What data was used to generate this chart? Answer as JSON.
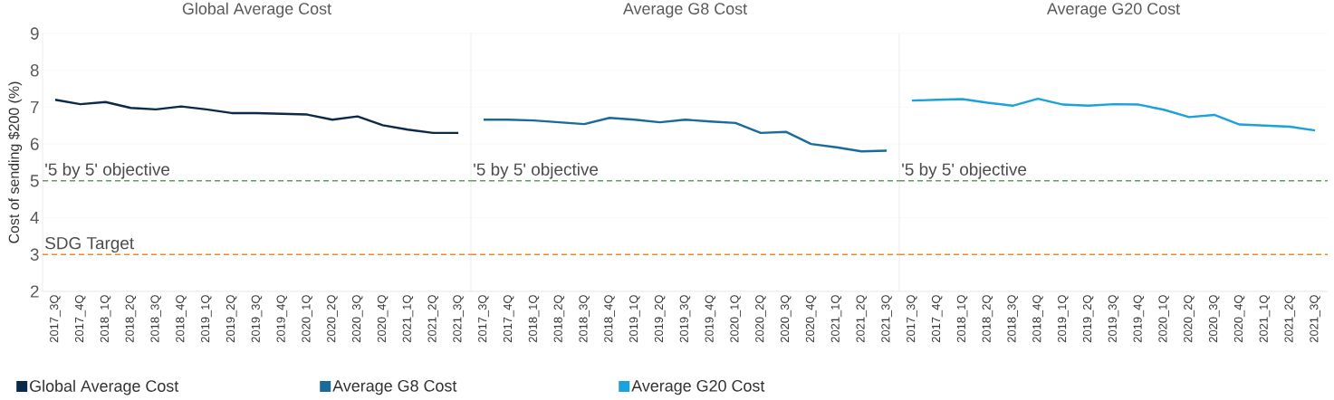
{
  "chart_data": [
    {
      "type": "line",
      "title": "Global Average Cost",
      "ylabel": "Cost of sending $200 (%)",
      "categories": [
        "2017_3Q",
        "2017_4Q",
        "2018_1Q",
        "2018_2Q",
        "2018_3Q",
        "2018_4Q",
        "2019_1Q",
        "2019_2Q",
        "2019_3Q",
        "2019_4Q",
        "2020_1Q",
        "2020_2Q",
        "2020_3Q",
        "2020_4Q",
        "2021_1Q",
        "2021_2Q",
        "2021_3Q"
      ],
      "series": [
        {
          "name": "Global Average Cost",
          "color": "#0b2a4a",
          "values": [
            7.2,
            7.08,
            7.14,
            6.98,
            6.94,
            7.02,
            6.94,
            6.84,
            6.84,
            6.82,
            6.8,
            6.66,
            6.75,
            6.51,
            6.39,
            6.3,
            6.3
          ]
        }
      ],
      "ylim": [
        2,
        9
      ],
      "yticks": [
        2,
        3,
        4,
        5,
        6,
        7,
        8,
        9
      ],
      "grid": "y",
      "legend": "bottom",
      "line_style": "solid",
      "ref_lines": [
        {
          "axis": "y",
          "value": 5,
          "label": "'5 by 5' objective",
          "color": "#5ba154",
          "line_style": "dashed"
        },
        {
          "axis": "y",
          "value": 3,
          "label": "SDG Target",
          "color": "#f08a24",
          "line_style": "dashed"
        }
      ]
    },
    {
      "type": "line",
      "title": "Average G8 Cost",
      "categories": [
        "2017_3Q",
        "2017_4Q",
        "2018_1Q",
        "2018_2Q",
        "2018_3Q",
        "2018_4Q",
        "2019_1Q",
        "2019_2Q",
        "2019_3Q",
        "2019_4Q",
        "2020_1Q",
        "2020_2Q",
        "2020_3Q",
        "2020_4Q",
        "2021_1Q",
        "2021_2Q",
        "2021_3Q"
      ],
      "series": [
        {
          "name": "Average G8 Cost",
          "color": "#1a6a9a",
          "values": [
            6.66,
            6.66,
            6.64,
            6.59,
            6.54,
            6.71,
            6.66,
            6.59,
            6.66,
            6.61,
            6.57,
            6.3,
            6.33,
            6.0,
            5.91,
            5.8,
            5.82
          ]
        }
      ],
      "ylim": [
        2,
        9
      ],
      "yticks": [
        2,
        3,
        4,
        5,
        6,
        7,
        8,
        9
      ],
      "tick_labels": "x",
      "grid": "y",
      "legend": "bottom",
      "line_style": "solid",
      "ref_lines": [
        {
          "axis": "y",
          "value": 5,
          "label": "'5 by 5' objective",
          "color": "#5ba154",
          "line_style": "dashed"
        },
        {
          "axis": "y",
          "value": 3,
          "label": null,
          "color": "#f08a24",
          "line_style": "dashed"
        }
      ]
    },
    {
      "type": "line",
      "title": "Average G20 Cost",
      "categories": [
        "2017_3Q",
        "2017_4Q",
        "2018_1Q",
        "2018_2Q",
        "2018_3Q",
        "2018_4Q",
        "2019_1Q",
        "2019_2Q",
        "2019_3Q",
        "2019_4Q",
        "2020_1Q",
        "2020_2Q",
        "2020_3Q",
        "2020_4Q",
        "2021_1Q",
        "2021_2Q",
        "2021_3Q"
      ],
      "series": [
        {
          "name": "Average G20 Cost",
          "color": "#1ba1dc",
          "values": [
            7.18,
            7.2,
            7.22,
            7.12,
            7.04,
            7.23,
            7.07,
            7.04,
            7.08,
            7.07,
            6.93,
            6.73,
            6.79,
            6.53,
            6.5,
            6.47,
            6.37
          ]
        }
      ],
      "ylim": [
        2,
        9
      ],
      "yticks": [
        2,
        3,
        4,
        5,
        6,
        7,
        8,
        9
      ],
      "tick_labels": "x",
      "grid": "y",
      "legend": "bottom",
      "line_style": "solid",
      "ref_lines": [
        {
          "axis": "y",
          "value": 5,
          "label": "'5 by 5' objective",
          "color": "#5ba154",
          "line_style": "dashed"
        },
        {
          "axis": "y",
          "value": 3,
          "label": null,
          "color": "#f08a24",
          "line_style": "dashed"
        }
      ]
    }
  ]
}
